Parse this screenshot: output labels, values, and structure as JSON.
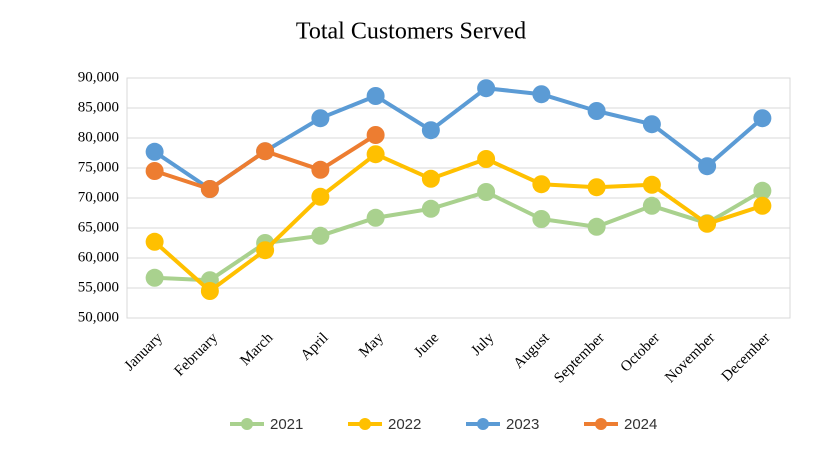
{
  "chart_data": {
    "type": "line",
    "title": "Total Customers Served",
    "categories": [
      "January",
      "February",
      "March",
      "April",
      "May",
      "June",
      "July",
      "August",
      "September",
      "October",
      "November",
      "December"
    ],
    "series": [
      {
        "name": "2021",
        "color": "#a9d18e",
        "values": [
          56700,
          56300,
          62500,
          63700,
          66700,
          68200,
          71000,
          66500,
          65200,
          68700,
          65800,
          71200
        ]
      },
      {
        "name": "2022",
        "color": "#ffc000",
        "values": [
          62700,
          54500,
          61300,
          70200,
          77300,
          73200,
          76500,
          72300,
          71800,
          72200,
          65700,
          68700
        ]
      },
      {
        "name": "2023",
        "color": "#5b9bd5",
        "values": [
          77700,
          71500,
          77800,
          83300,
          87000,
          81300,
          88300,
          87300,
          84500,
          82300,
          75300,
          83300
        ]
      },
      {
        "name": "2024",
        "color": "#ed7d31",
        "values": [
          74500,
          71500,
          77800,
          74700,
          80500,
          null,
          null,
          null,
          null,
          null,
          null,
          null
        ]
      }
    ],
    "ylim": [
      50000,
      90000
    ],
    "yticks": [
      {
        "value": 50000,
        "label": "50,000"
      },
      {
        "value": 55000,
        "label": "55,000"
      },
      {
        "value": 60000,
        "label": "60,000"
      },
      {
        "value": 65000,
        "label": "65,000"
      },
      {
        "value": 70000,
        "label": "70,000"
      },
      {
        "value": 75000,
        "label": "75,000"
      },
      {
        "value": 80000,
        "label": "80,000"
      },
      {
        "value": 85000,
        "label": "85,000"
      },
      {
        "value": 90000,
        "label": "90,000"
      }
    ],
    "grid": true,
    "legend": "bottom"
  }
}
